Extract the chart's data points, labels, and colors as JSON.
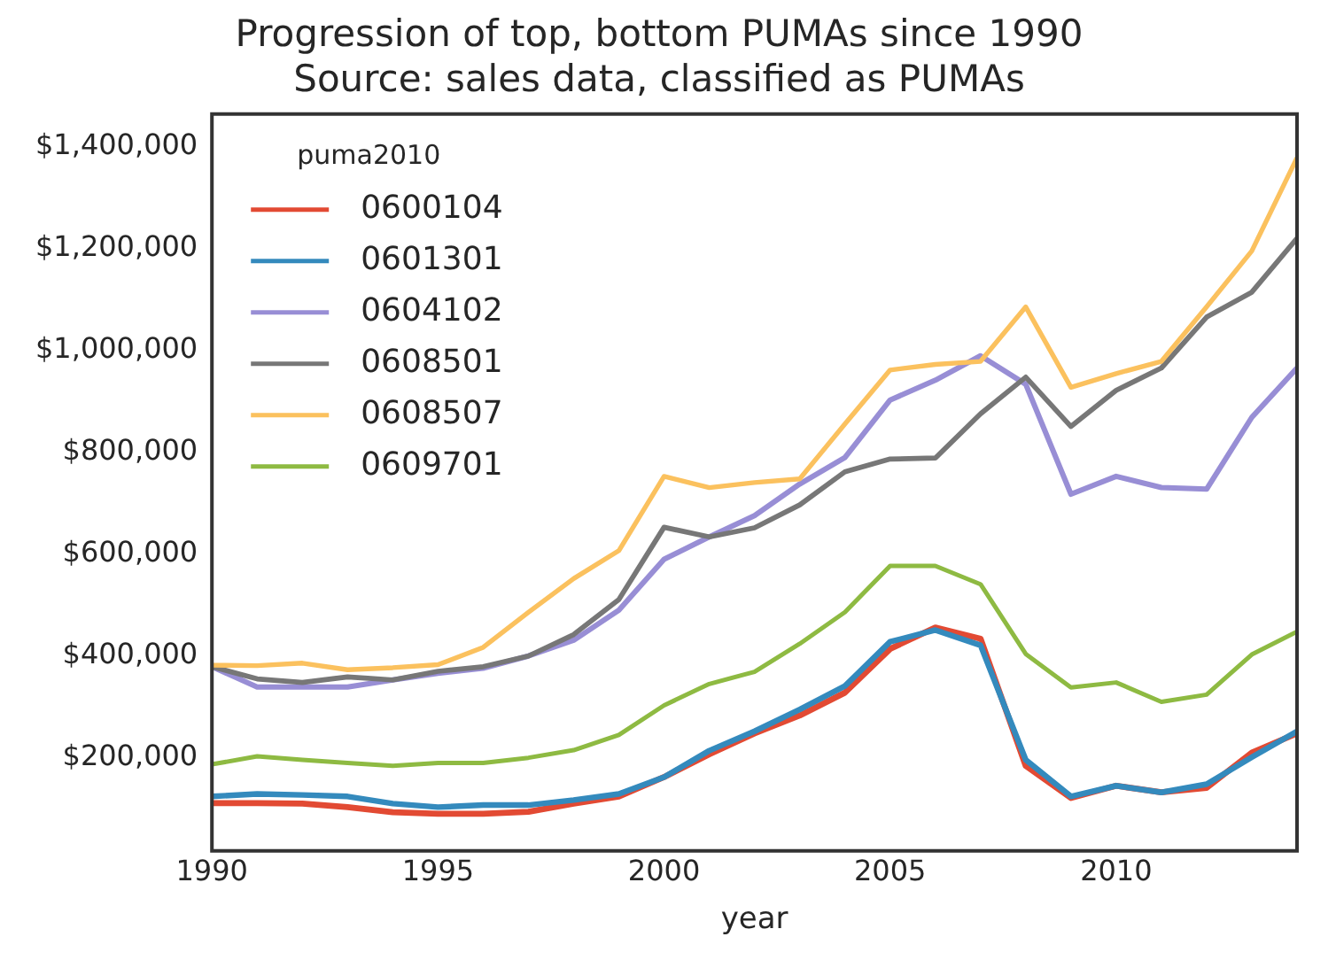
{
  "chart_data": {
    "type": "line",
    "title": "Progression of top, bottom PUMAs since 1990",
    "subtitle": "Source: sales data, classified as PUMAs",
    "xlabel": "year",
    "legend_title": "puma2010",
    "legend": "top left",
    "grid": false,
    "marker": "none",
    "line_style": "solid",
    "x": [
      1990,
      1991,
      1992,
      1993,
      1994,
      1995,
      1996,
      1997,
      1998,
      1999,
      2000,
      2001,
      2002,
      2003,
      2004,
      2005,
      2006,
      2007,
      2008,
      2009,
      2010,
      2011,
      2012,
      2013,
      2014
    ],
    "xlim": [
      1990,
      2014
    ],
    "xticks": [
      1990,
      1995,
      2000,
      2005,
      2010
    ],
    "ylim": [
      17000,
      1465000
    ],
    "yticks": [
      {
        "value": 200000,
        "label": "$200,000"
      },
      {
        "value": 400000,
        "label": "$400,000"
      },
      {
        "value": 600000,
        "label": "$600,000"
      },
      {
        "value": 800000,
        "label": "$800,000"
      },
      {
        "value": 1000000,
        "label": "$1,000,000"
      },
      {
        "value": 1200000,
        "label": "$1,200,000"
      },
      {
        "value": 1400000,
        "label": "$1,400,000"
      }
    ],
    "series": [
      {
        "name": "0600104",
        "color": "#e24a33",
        "values": [
          111000,
          111000,
          110000,
          103000,
          93000,
          90000,
          90000,
          94000,
          110000,
          124000,
          162000,
          207000,
          248000,
          283000,
          328000,
          414000,
          456000,
          434000,
          184000,
          121000,
          145000,
          132000,
          141000,
          210000,
          248000
        ]
      },
      {
        "name": "0601301",
        "color": "#348abd",
        "values": [
          124000,
          129000,
          127000,
          124000,
          110000,
          103000,
          107000,
          107000,
          117000,
          129000,
          162000,
          214000,
          252000,
          295000,
          341000,
          428000,
          451000,
          421000,
          196000,
          124000,
          145000,
          132000,
          148000,
          201000,
          252000
        ]
      },
      {
        "name": "0604102",
        "color": "#988ed5",
        "values": [
          379000,
          339000,
          339000,
          339000,
          353000,
          366000,
          376000,
          400000,
          431000,
          490000,
          590000,
          634000,
          676000,
          738000,
          790000,
          903000,
          942000,
          990000,
          934000,
          718000,
          753000,
          731000,
          728000,
          869000,
          966000
        ]
      },
      {
        "name": "0608501",
        "color": "#777777",
        "values": [
          379000,
          355000,
          348000,
          359000,
          353000,
          370000,
          379000,
          400000,
          442000,
          511000,
          653000,
          634000,
          652000,
          697000,
          762000,
          787000,
          789000,
          876000,
          948000,
          851000,
          922000,
          966000,
          1066000,
          1115000,
          1221000
        ]
      },
      {
        "name": "0608507",
        "color": "#fbc15e",
        "values": [
          382000,
          381000,
          386000,
          373000,
          377000,
          383000,
          417000,
          486000,
          552000,
          607000,
          753000,
          731000,
          741000,
          748000,
          856000,
          962000,
          973000,
          979000,
          1086000,
          928000,
          955000,
          979000,
          1086000,
          1196000,
          1379000
        ]
      },
      {
        "name": "0609701",
        "color": "#8eba42",
        "values": [
          187000,
          203000,
          196000,
          190000,
          184000,
          190000,
          190000,
          200000,
          215000,
          245000,
          303000,
          345000,
          369000,
          424000,
          486000,
          577000,
          577000,
          541000,
          404000,
          338000,
          348000,
          310000,
          324000,
          403000,
          448000
        ]
      }
    ]
  }
}
